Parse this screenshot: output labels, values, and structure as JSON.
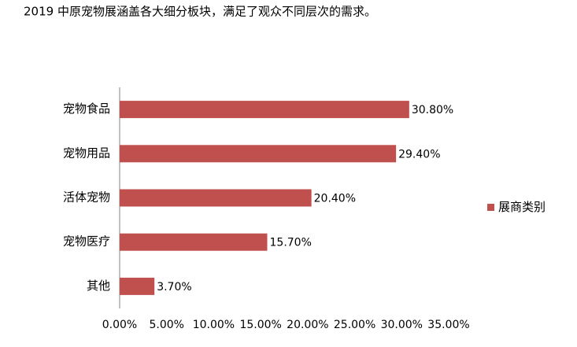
{
  "chart_data": {
    "type": "bar",
    "orientation": "horizontal",
    "title": "2019 中原宠物展涵盖各大细分板块，满足了观众不同层次的需求。",
    "categories": [
      "宠物食品",
      "宠物用品",
      "活体宠物",
      "宠物医疗",
      "其他"
    ],
    "series": [
      {
        "name": "展商类别",
        "color": "#c0504d",
        "values": [
          30.8,
          29.4,
          20.4,
          15.7,
          3.7
        ],
        "value_labels": [
          "30.80%",
          "29.40%",
          "20.40%",
          "15.70%",
          "3.70%"
        ]
      }
    ],
    "xlim": [
      0,
      35
    ],
    "xticks": [
      {
        "value": 0,
        "label": "0.00%"
      },
      {
        "value": 5,
        "label": "5.00%"
      },
      {
        "value": 10,
        "label": "10.00%"
      },
      {
        "value": 15,
        "label": "15.00%"
      },
      {
        "value": 20,
        "label": "20.00%"
      },
      {
        "value": 25,
        "label": "25.00%"
      },
      {
        "value": 30,
        "label": "30.00%"
      },
      {
        "value": 35,
        "label": "35.00%"
      }
    ],
    "grid": false,
    "legend": "right"
  }
}
